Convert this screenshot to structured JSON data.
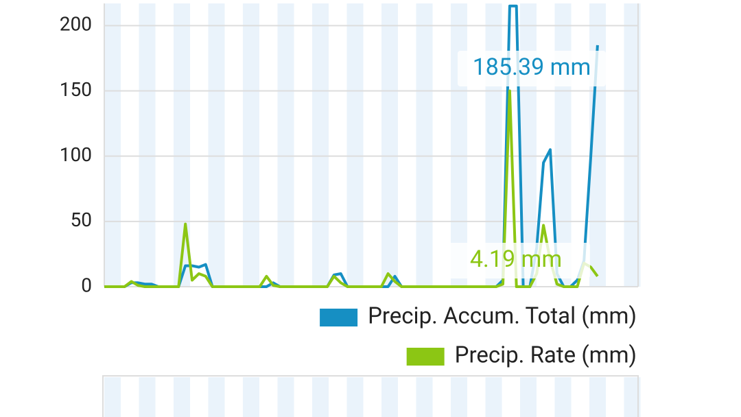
{
  "chart_data": {
    "type": "line",
    "categories": [
      null,
      null,
      null,
      null,
      null,
      null,
      null,
      null,
      null,
      null,
      null,
      null,
      null,
      null,
      null,
      null,
      null,
      null,
      null,
      null,
      null,
      null,
      null,
      null,
      null,
      null,
      null,
      null,
      null,
      null,
      null,
      null,
      null,
      null,
      null,
      null,
      null,
      null,
      null,
      null,
      null,
      null,
      null,
      null,
      null,
      null,
      null,
      null,
      null,
      null,
      null,
      null,
      null,
      null,
      null,
      null,
      null,
      null,
      null,
      null,
      null,
      null,
      null,
      null,
      null,
      null,
      null,
      null,
      null,
      null,
      null,
      null,
      null,
      null,
      null,
      null,
      null,
      null,
      null,
      null
    ],
    "series": [
      {
        "name": "Precip. Accum. Total (mm)",
        "color": "#168fc3",
        "values": [
          0,
          0,
          0,
          0,
          3,
          3,
          2,
          2,
          0,
          0,
          0,
          0,
          16,
          16,
          15,
          17,
          0,
          0,
          0,
          0,
          0,
          0,
          0,
          0,
          0,
          3,
          0,
          0,
          0,
          0,
          0,
          0,
          0,
          0,
          9,
          10,
          0,
          0,
          0,
          0,
          0,
          0,
          0,
          8,
          0,
          0,
          0,
          0,
          0,
          0,
          0,
          0,
          0,
          0,
          0,
          0,
          0,
          0,
          0,
          5,
          215,
          215,
          0,
          0,
          30,
          95,
          105,
          10,
          0,
          0,
          5,
          20,
          100,
          185,
          null,
          null,
          null,
          null,
          null,
          null
        ]
      },
      {
        "name": "Precip. Rate (mm)",
        "color": "#8cc614",
        "values": [
          0,
          0,
          0,
          0,
          4,
          1,
          0,
          0,
          0,
          0,
          0,
          0,
          48,
          5,
          10,
          8,
          0,
          0,
          0,
          0,
          0,
          0,
          0,
          0,
          8,
          1,
          0,
          0,
          0,
          0,
          0,
          0,
          0,
          0,
          8,
          3,
          0,
          0,
          0,
          0,
          0,
          0,
          10,
          4,
          0,
          0,
          0,
          0,
          0,
          0,
          0,
          0,
          0,
          0,
          0,
          0,
          0,
          0,
          0,
          2,
          150,
          0,
          0,
          0,
          10,
          47,
          20,
          2,
          0,
          0,
          0,
          18,
          15,
          8,
          null,
          null,
          null,
          null,
          null,
          null
        ]
      }
    ],
    "annotations": [
      "185.39 mm",
      "4.19 mm"
    ],
    "ylim": [
      0,
      217
    ],
    "yticks": [
      0,
      50,
      100,
      150,
      200
    ],
    "grid": true
  }
}
